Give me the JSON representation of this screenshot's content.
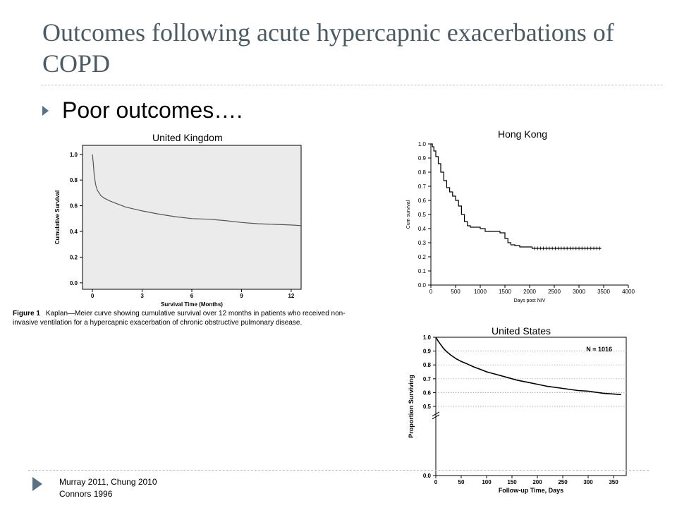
{
  "slide": {
    "title": "Outcomes following acute hypercapnic exacerbations of COPD",
    "bullet": "Poor outcomes….",
    "footer_lines": [
      "Murray 2011, Chung  2010",
      "Connors  1996"
    ]
  },
  "colors": {
    "title": "#4d5a61",
    "accent": "#5a7183",
    "uk_plot_bg": "#ebebeb"
  },
  "chart_data": [
    {
      "id": "uk",
      "type": "line",
      "title": "United Kingdom",
      "xlabel": "Survival Time (Months)",
      "ylabel": "Cumulative Survival",
      "xlim": [
        -0.6,
        12.6
      ],
      "ylim": [
        -0.05,
        1.07
      ],
      "xticks": [
        0,
        3,
        6,
        9,
        12
      ],
      "yticks": [
        0.0,
        0.2,
        0.4,
        0.6,
        0.8,
        1.0
      ],
      "ytick_decimals": 1,
      "grid": false,
      "caption_label": "Figure 1",
      "caption": "Kaplan—Meier curve showing cumulative survival over 12 months in patients who received non-invasive ventilation for a hypercapnic exacerbation of chronic obstructive pulmonary disease.",
      "series": [
        {
          "x": [
            0,
            0.05,
            0.1,
            0.15,
            0.2,
            0.3,
            0.4,
            0.5,
            0.7,
            1.0,
            1.5,
            2,
            3,
            4,
            5,
            6,
            7,
            8,
            9,
            10,
            11,
            12,
            12.6
          ],
          "y": [
            1.0,
            0.93,
            0.85,
            0.8,
            0.76,
            0.72,
            0.7,
            0.68,
            0.66,
            0.64,
            0.615,
            0.59,
            0.56,
            0.535,
            0.515,
            0.5,
            0.495,
            0.485,
            0.47,
            0.46,
            0.455,
            0.45,
            0.445
          ]
        }
      ]
    },
    {
      "id": "hk",
      "type": "line",
      "title": "Hong Kong",
      "xlabel": "Days post NIV",
      "ylabel": "Cum survival",
      "xlim": [
        0,
        4000
      ],
      "ylim": [
        0,
        1.0
      ],
      "xticks": [
        0,
        500,
        1000,
        1500,
        2000,
        2500,
        3000,
        3500,
        4000
      ],
      "yticks": [
        0.0,
        0.1,
        0.2,
        0.3,
        0.4,
        0.5,
        0.6,
        0.7,
        0.8,
        0.9,
        1.0
      ],
      "ytick_decimals": 1,
      "grid": false,
      "series": [
        {
          "x": [
            0,
            30,
            60,
            100,
            150,
            200,
            260,
            320,
            380,
            440,
            500,
            560,
            620,
            680,
            740,
            800,
            900,
            1000,
            1100,
            1300,
            1400,
            1500,
            1560,
            1620,
            1700,
            1800,
            2000,
            2050,
            2200,
            2500,
            3000,
            3450
          ],
          "y": [
            1.0,
            0.98,
            0.95,
            0.91,
            0.86,
            0.8,
            0.74,
            0.69,
            0.66,
            0.63,
            0.6,
            0.56,
            0.5,
            0.45,
            0.42,
            0.41,
            0.41,
            0.4,
            0.38,
            0.38,
            0.37,
            0.33,
            0.3,
            0.285,
            0.28,
            0.27,
            0.27,
            0.26,
            0.26,
            0.26,
            0.26,
            0.26
          ]
        }
      ]
    },
    {
      "id": "us",
      "type": "line",
      "title": "United States",
      "xlabel": "Follow-up Time, Days",
      "ylabel": "Proportion Surviving",
      "annotation": "N = 1016",
      "xlim": [
        0,
        375
      ],
      "ylim": [
        0.0,
        1.0
      ],
      "xticks": [
        0,
        50,
        100,
        150,
        200,
        250,
        300,
        350
      ],
      "yticks": [
        0.0,
        0.5,
        0.6,
        0.7,
        0.8,
        0.9,
        1.0
      ],
      "ytick_decimals": 1,
      "grid": true,
      "axis_break": true,
      "series": [
        {
          "x": [
            0,
            5,
            10,
            15,
            20,
            30,
            40,
            50,
            60,
            75,
            90,
            100,
            120,
            140,
            160,
            180,
            200,
            220,
            240,
            260,
            280,
            300,
            310,
            320,
            330,
            350,
            365
          ],
          "y": [
            1.0,
            0.97,
            0.945,
            0.92,
            0.9,
            0.87,
            0.845,
            0.825,
            0.81,
            0.785,
            0.765,
            0.75,
            0.73,
            0.71,
            0.69,
            0.675,
            0.66,
            0.645,
            0.635,
            0.625,
            0.615,
            0.61,
            0.605,
            0.6,
            0.595,
            0.59,
            0.585
          ]
        }
      ]
    }
  ]
}
